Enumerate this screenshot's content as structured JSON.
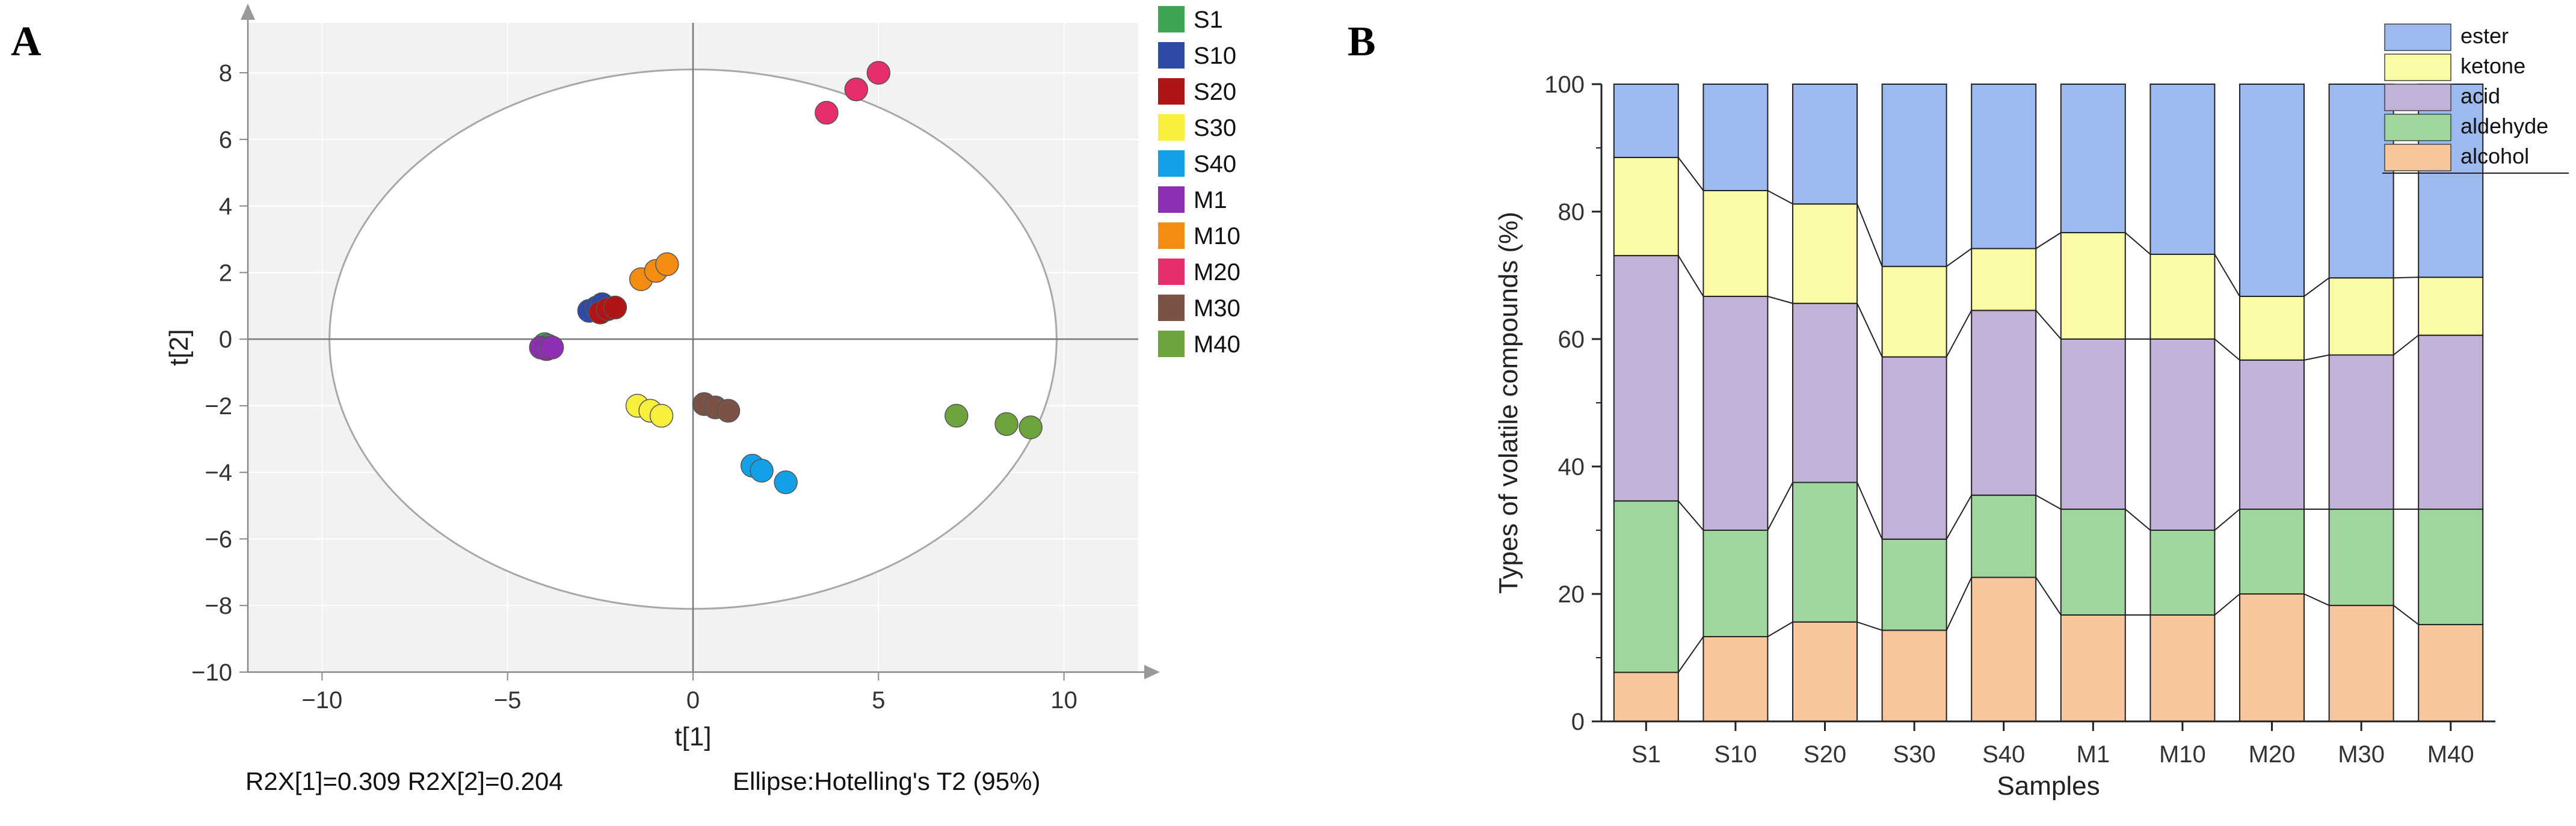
{
  "panels": {
    "a_letter": "A",
    "b_letter": "B"
  },
  "chart_data": [
    {
      "type": "scatter",
      "title": "",
      "xlabel": "t[1]",
      "ylabel": "t[2]",
      "xlim": [
        -12,
        12
      ],
      "ylim": [
        -10,
        9.5
      ],
      "x_ticks": [
        -10,
        -5,
        0,
        5,
        10
      ],
      "y_ticks": [
        -10,
        -8,
        -6,
        -4,
        -2,
        0,
        2,
        4,
        6,
        8
      ],
      "x_tick_labels": [
        "−10",
        "−5",
        "0",
        "5",
        "10"
      ],
      "y_tick_labels": [
        "−10",
        "−8",
        "−6",
        "−4",
        "−2",
        "0",
        "2",
        "4",
        "6",
        "8"
      ],
      "ellipse": {
        "cx": 0,
        "cy": 0,
        "rx": 9.8,
        "ry": 8.1
      },
      "footer_left": "R2X[1]=0.309 R2X[2]=0.204",
      "footer_right": "Ellipse:Hotelling's T2 (95%)",
      "series": [
        {
          "name": "S1",
          "color": "#3ea552",
          "points": [
            [
              -4.0,
              -0.15
            ],
            [
              -3.9,
              -0.2
            ],
            [
              -3.85,
              -0.25
            ]
          ]
        },
        {
          "name": "S10",
          "color": "#2e4aa8",
          "points": [
            [
              -2.8,
              0.85
            ],
            [
              -2.6,
              0.95
            ],
            [
              -2.45,
              1.05
            ]
          ]
        },
        {
          "name": "S20",
          "color": "#b01515",
          "points": [
            [
              -2.5,
              0.8
            ],
            [
              -2.3,
              0.9
            ],
            [
              -2.1,
              0.95
            ]
          ]
        },
        {
          "name": "S30",
          "color": "#f7ef3b",
          "points": [
            [
              -1.5,
              -2.0
            ],
            [
              -1.15,
              -2.15
            ],
            [
              -0.85,
              -2.3
            ]
          ]
        },
        {
          "name": "S40",
          "color": "#14a0e6",
          "points": [
            [
              1.6,
              -3.8
            ],
            [
              1.85,
              -3.95
            ],
            [
              2.5,
              -4.3
            ]
          ]
        },
        {
          "name": "M1",
          "color": "#8e2eb5",
          "points": [
            [
              -4.1,
              -0.25
            ],
            [
              -3.95,
              -0.3
            ],
            [
              -3.8,
              -0.25
            ]
          ]
        },
        {
          "name": "M10",
          "color": "#f28c12",
          "points": [
            [
              -1.4,
              1.8
            ],
            [
              -1.0,
              2.05
            ],
            [
              -0.7,
              2.25
            ]
          ]
        },
        {
          "name": "M20",
          "color": "#e62e6a",
          "points": [
            [
              3.6,
              6.8
            ],
            [
              4.4,
              7.5
            ],
            [
              5.0,
              8.0
            ]
          ]
        },
        {
          "name": "M30",
          "color": "#7a5246",
          "points": [
            [
              0.3,
              -1.95
            ],
            [
              0.6,
              -2.05
            ],
            [
              0.95,
              -2.15
            ]
          ]
        },
        {
          "name": "M40",
          "color": "#6da43d",
          "points": [
            [
              7.1,
              -2.3
            ],
            [
              8.45,
              -2.55
            ],
            [
              9.1,
              -2.65
            ]
          ]
        }
      ]
    },
    {
      "type": "bar",
      "stacked": true,
      "xlabel": "Samples",
      "ylabel": "Types of volatile compounds (%)",
      "ylim": [
        0,
        100
      ],
      "y_ticks": [
        0,
        20,
        40,
        60,
        80,
        100
      ],
      "y_tick_labels": [
        "0",
        "20",
        "40",
        "60",
        "80",
        "100"
      ],
      "categories": [
        "S1",
        "S10",
        "S20",
        "S30",
        "S40",
        "M1",
        "M10",
        "M20",
        "M30",
        "M40"
      ],
      "series": [
        {
          "name": "alcohol",
          "color": "#f8c69c",
          "values": [
            7.7,
            13.3,
            15.6,
            14.3,
            22.6,
            16.7,
            16.7,
            20.0,
            18.2,
            15.2
          ]
        },
        {
          "name": "aldehyde",
          "color": "#9ed69e",
          "values": [
            26.9,
            16.7,
            21.9,
            14.3,
            12.9,
            16.6,
            13.3,
            13.3,
            15.1,
            18.1
          ]
        },
        {
          "name": "acid",
          "color": "#c2b2d9",
          "values": [
            38.5,
            36.7,
            28.1,
            28.6,
            29.0,
            26.7,
            30.0,
            23.4,
            24.2,
            27.3
          ]
        },
        {
          "name": "ketone",
          "color": "#fbfba5",
          "values": [
            15.4,
            16.6,
            15.6,
            14.2,
            9.7,
            16.7,
            13.3,
            10.0,
            12.1,
            9.1
          ]
        },
        {
          "name": "ester",
          "color": "#9cb9f0",
          "values": [
            11.5,
            16.7,
            18.8,
            28.6,
            25.8,
            23.3,
            26.7,
            33.3,
            30.4,
            30.3
          ]
        }
      ],
      "legend_order": [
        "ester",
        "ketone",
        "acid",
        "aldehyde",
        "alcohol"
      ]
    }
  ]
}
